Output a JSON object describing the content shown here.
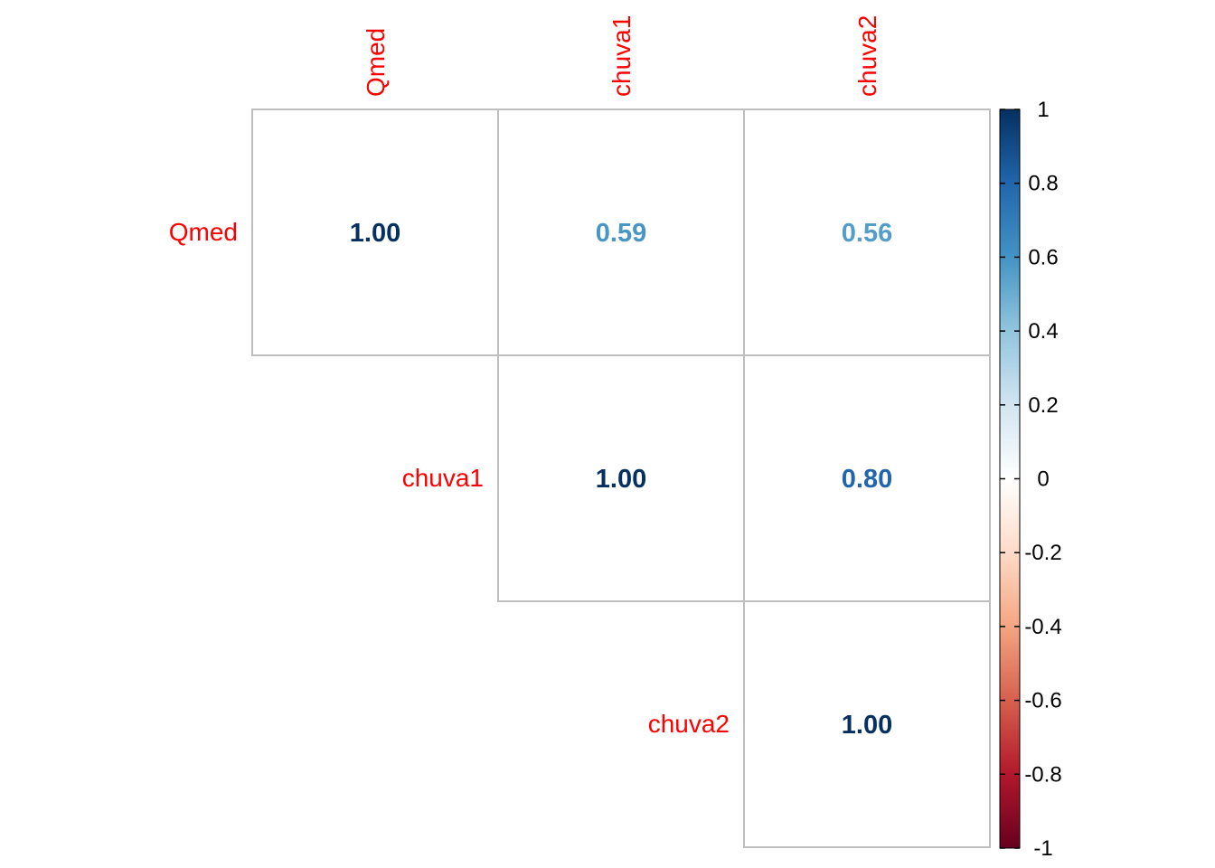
{
  "chart_data": {
    "type": "heatmap",
    "variables": [
      "Qmed",
      "chuva1",
      "chuva2"
    ],
    "matrix": [
      [
        1.0,
        0.59,
        0.56
      ],
      [
        0.59,
        1.0,
        0.8
      ],
      [
        0.56,
        0.8,
        1.0
      ]
    ],
    "display": "upper-triangle",
    "cell_labels": [
      [
        {
          "row": 0,
          "col": 0,
          "label": "1.00"
        },
        {
          "row": 0,
          "col": 1,
          "label": "0.59"
        },
        {
          "row": 0,
          "col": 2,
          "label": "0.56"
        }
      ],
      [
        {
          "row": 1,
          "col": 1,
          "label": "1.00"
        },
        {
          "row": 1,
          "col": 2,
          "label": "0.80"
        }
      ],
      [
        {
          "row": 2,
          "col": 2,
          "label": "1.00"
        }
      ]
    ],
    "color_scale": {
      "min": -1,
      "max": 1,
      "ticks": [
        "1",
        "0.8",
        "0.6",
        "0.4",
        "0.2",
        "0",
        "-0.2",
        "-0.4",
        "-0.6",
        "-0.8",
        "-1"
      ],
      "palette": [
        "#67001F",
        "#B2182B",
        "#D6604D",
        "#F4A582",
        "#FDDBC7",
        "#FFFFFF",
        "#D1E5F0",
        "#92C5DE",
        "#4393C3",
        "#2166AC",
        "#053061"
      ]
    },
    "label_color": "#FF0000",
    "grid_color": "#BEBEBE",
    "legend_position": "right"
  }
}
